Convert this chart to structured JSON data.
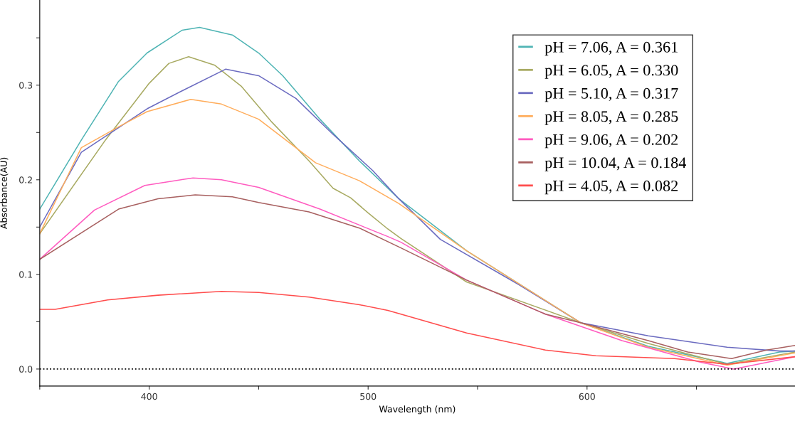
{
  "chart_data": {
    "type": "line",
    "xlabel": "Wavelength (nm)",
    "ylabel": "Absorbance(AU)",
    "xlim": [
      350,
      695
    ],
    "ylim": [
      -0.018,
      0.39
    ],
    "xticks": [
      {
        "value": 350,
        "label": null
      },
      400,
      {
        "value": 450,
        "label": null
      },
      500,
      {
        "value": 550,
        "label": null
      },
      600,
      {
        "value": 650,
        "label": null
      }
    ],
    "yticks": [
      {
        "value": 0,
        "label": "0.0"
      },
      {
        "value": 0.05,
        "label": null
      },
      0.1,
      {
        "value": 0.15,
        "label": null
      },
      0.2,
      {
        "value": 0.25,
        "label": null
      },
      0.3,
      {
        "value": 0.35,
        "label": null
      }
    ],
    "grid": false,
    "legend": "top right",
    "marker": "none",
    "line_style": "solid",
    "ref_lines": [
      {
        "axis": "y",
        "value": 0,
        "color": "#000000",
        "line_style": "dotted"
      }
    ],
    "series": [
      {
        "name": "pH = 7.06, A = 0.361",
        "color": "#4fb4b4",
        "x": [
          350,
          369,
          386,
          399,
          415,
          423,
          438,
          450,
          461,
          478,
          496,
          514,
          545,
          597,
          628,
          664,
          688,
          695
        ],
        "values": [
          0.169,
          0.242,
          0.304,
          0.334,
          0.358,
          0.361,
          0.353,
          0.334,
          0.31,
          0.264,
          0.22,
          0.18,
          0.125,
          0.049,
          0.024,
          0.006,
          0.018,
          0.019
        ]
      },
      {
        "name": "pH = 6.05, A = 0.330",
        "color": "#a8aa62",
        "x": [
          350,
          380,
          400,
          409,
          418,
          430,
          442,
          456,
          473,
          484,
          492,
          500,
          509,
          515,
          545,
          597,
          628,
          664,
          695
        ],
        "values": [
          0.143,
          0.242,
          0.302,
          0.323,
          0.33,
          0.321,
          0.299,
          0.261,
          0.22,
          0.191,
          0.181,
          0.165,
          0.148,
          0.138,
          0.092,
          0.049,
          0.027,
          0.005,
          0.018
        ]
      },
      {
        "name": "pH = 5.10, A = 0.317",
        "color": "#6b6bc0",
        "x": [
          350,
          369,
          399,
          415,
          435,
          450,
          467,
          484,
          502,
          514,
          533,
          569,
          597,
          628,
          664,
          688,
          695
        ],
        "values": [
          0.15,
          0.229,
          0.275,
          0.294,
          0.317,
          0.31,
          0.286,
          0.248,
          0.21,
          0.18,
          0.137,
          0.089,
          0.049,
          0.035,
          0.023,
          0.019,
          0.019
        ]
      },
      {
        "name": "pH = 8.05, A = 0.285",
        "color": "#ffad5c",
        "x": [
          350,
          369,
          386,
          399,
          419,
          433,
          450,
          476,
          496,
          514,
          545,
          597,
          628,
          664,
          695
        ],
        "values": [
          0.143,
          0.234,
          0.256,
          0.272,
          0.285,
          0.28,
          0.264,
          0.218,
          0.199,
          0.175,
          0.125,
          0.049,
          0.023,
          0.004,
          0.017
        ]
      },
      {
        "name": "pH = 9.06, A = 0.202",
        "color": "#ff5cc0",
        "x": [
          350,
          375,
          398,
          420,
          433,
          450,
          478,
          509,
          515,
          545,
          581,
          616,
          652,
          667,
          695
        ],
        "values": [
          0.116,
          0.168,
          0.194,
          0.202,
          0.2,
          0.192,
          0.169,
          0.14,
          0.134,
          0.094,
          0.058,
          0.03,
          0.007,
          0.0,
          0.013
        ]
      },
      {
        "name": "pH = 10.04, A = 0.184",
        "color": "#a86060",
        "x": [
          350,
          386,
          404,
          421,
          438,
          450,
          473,
          496,
          515,
          545,
          581,
          597,
          628,
          646,
          666,
          682,
          695
        ],
        "values": [
          0.116,
          0.169,
          0.18,
          0.184,
          0.182,
          0.176,
          0.166,
          0.149,
          0.128,
          0.094,
          0.058,
          0.049,
          0.03,
          0.018,
          0.011,
          0.02,
          0.025
        ]
      },
      {
        "name": "pH = 4.05, A = 0.082",
        "color": "#ff4d4d",
        "x": [
          350,
          357,
          381,
          404,
          433,
          450,
          473,
          496,
          509,
          515,
          545,
          581,
          604,
          640,
          664,
          695
        ],
        "values": [
          0.063,
          0.063,
          0.073,
          0.078,
          0.082,
          0.081,
          0.076,
          0.068,
          0.062,
          0.058,
          0.038,
          0.02,
          0.014,
          0.011,
          0.005,
          0.013
        ]
      }
    ]
  }
}
